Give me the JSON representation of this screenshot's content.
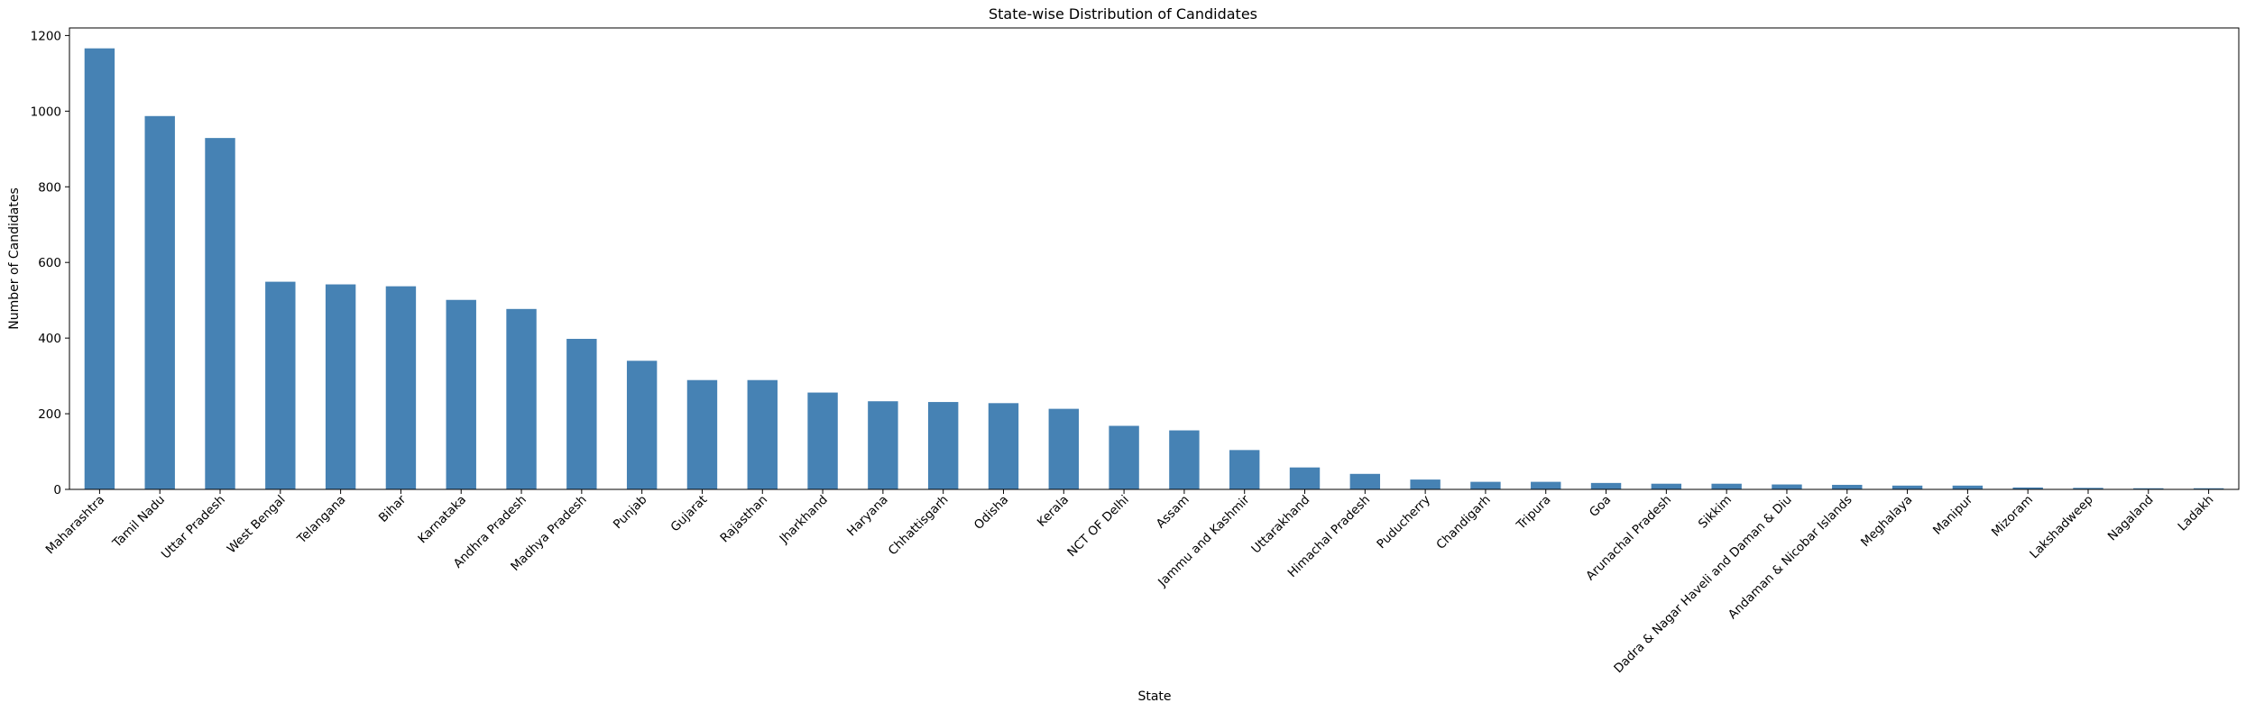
{
  "chart_data": {
    "type": "bar",
    "title": "State-wise Distribution of Candidates",
    "xlabel": "State",
    "ylabel": "Number of Candidates",
    "ylim": [
      0,
      1220
    ],
    "yticks": [
      0,
      200,
      400,
      600,
      800,
      1000,
      1200
    ],
    "bar_color": "#4682b4",
    "grid": false,
    "categories": [
      "Maharashtra",
      "Tamil Nadu",
      "Uttar Pradesh",
      "West Bengal",
      "Telangana",
      "Bihar",
      "Karnataka",
      "Andhra Pradesh",
      "Madhya Pradesh",
      "Punjab",
      "Gujarat",
      "Rajasthan",
      "Jharkhand",
      "Haryana",
      "Chhattisgarh",
      "Odisha",
      "Kerala",
      "NCT OF Delhi",
      "Assam",
      "Jammu and Kashmir",
      "Uttarakhand",
      "Himachal Pradesh",
      "Puducherry",
      "Chandigarh",
      "Tripura",
      "Goa",
      "Arunachal Pradesh",
      "Sikkim",
      "Dadra & Nagar Haveli and Daman & Diu",
      "Andaman & Nicobar Islands",
      "Meghalaya",
      "Manipur",
      "Mizoram",
      "Lakshadweep",
      "Nagaland",
      "Ladakh"
    ],
    "values": [
      1166,
      987,
      929,
      549,
      542,
      537,
      501,
      477,
      398,
      340,
      289,
      289,
      256,
      233,
      231,
      228,
      213,
      168,
      156,
      104,
      58,
      41,
      26,
      20,
      20,
      17,
      15,
      15,
      13,
      12,
      10,
      10,
      5,
      4,
      3,
      3
    ]
  }
}
